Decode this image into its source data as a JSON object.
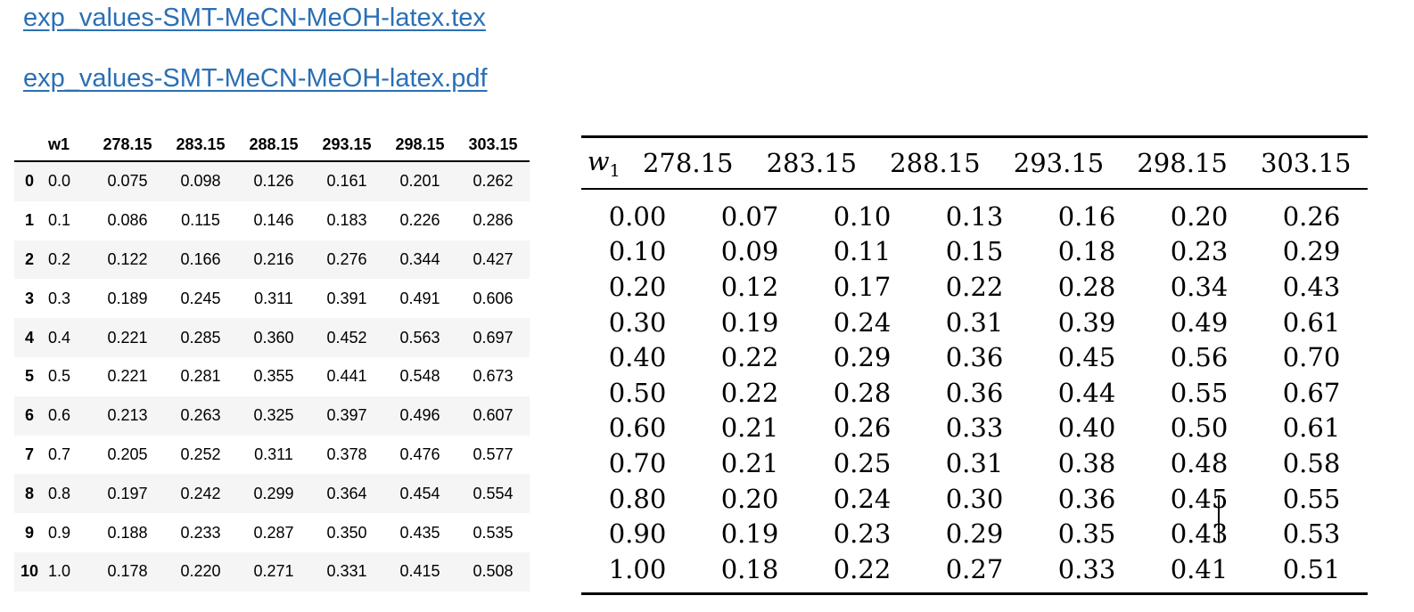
{
  "links": {
    "tex": "exp_values-SMT-MeCN-MeOH-latex.tex",
    "pdf": "exp_values-SMT-MeCN-MeOH-latex.pdf"
  },
  "dataframe": {
    "columns": [
      "w1",
      "278.15",
      "283.15",
      "288.15",
      "293.15",
      "298.15",
      "303.15"
    ],
    "rows": [
      {
        "index": "0",
        "cells": [
          "0.0",
          "0.075",
          "0.098",
          "0.126",
          "0.161",
          "0.201",
          "0.262"
        ]
      },
      {
        "index": "1",
        "cells": [
          "0.1",
          "0.086",
          "0.115",
          "0.146",
          "0.183",
          "0.226",
          "0.286"
        ]
      },
      {
        "index": "2",
        "cells": [
          "0.2",
          "0.122",
          "0.166",
          "0.216",
          "0.276",
          "0.344",
          "0.427"
        ]
      },
      {
        "index": "3",
        "cells": [
          "0.3",
          "0.189",
          "0.245",
          "0.311",
          "0.391",
          "0.491",
          "0.606"
        ]
      },
      {
        "index": "4",
        "cells": [
          "0.4",
          "0.221",
          "0.285",
          "0.360",
          "0.452",
          "0.563",
          "0.697"
        ]
      },
      {
        "index": "5",
        "cells": [
          "0.5",
          "0.221",
          "0.281",
          "0.355",
          "0.441",
          "0.548",
          "0.673"
        ]
      },
      {
        "index": "6",
        "cells": [
          "0.6",
          "0.213",
          "0.263",
          "0.325",
          "0.397",
          "0.496",
          "0.607"
        ]
      },
      {
        "index": "7",
        "cells": [
          "0.7",
          "0.205",
          "0.252",
          "0.311",
          "0.378",
          "0.476",
          "0.577"
        ]
      },
      {
        "index": "8",
        "cells": [
          "0.8",
          "0.197",
          "0.242",
          "0.299",
          "0.364",
          "0.454",
          "0.554"
        ]
      },
      {
        "index": "9",
        "cells": [
          "0.9",
          "0.188",
          "0.233",
          "0.287",
          "0.350",
          "0.435",
          "0.535"
        ]
      },
      {
        "index": "10",
        "cells": [
          "1.0",
          "0.178",
          "0.220",
          "0.271",
          "0.331",
          "0.415",
          "0.508"
        ]
      }
    ]
  },
  "latex_table": {
    "w1_symbol": "w",
    "w1_subscript": "1",
    "headers": [
      "278.15",
      "283.15",
      "288.15",
      "293.15",
      "298.15",
      "303.15"
    ],
    "rows": [
      [
        "0.00",
        "0.07",
        "0.10",
        "0.13",
        "0.16",
        "0.20",
        "0.26"
      ],
      [
        "0.10",
        "0.09",
        "0.11",
        "0.15",
        "0.18",
        "0.23",
        "0.29"
      ],
      [
        "0.20",
        "0.12",
        "0.17",
        "0.22",
        "0.28",
        "0.34",
        "0.43"
      ],
      [
        "0.30",
        "0.19",
        "0.24",
        "0.31",
        "0.39",
        "0.49",
        "0.61"
      ],
      [
        "0.40",
        "0.22",
        "0.29",
        "0.36",
        "0.45",
        "0.56",
        "0.70"
      ],
      [
        "0.50",
        "0.22",
        "0.28",
        "0.36",
        "0.44",
        "0.55",
        "0.67"
      ],
      [
        "0.60",
        "0.21",
        "0.26",
        "0.33",
        "0.40",
        "0.50",
        "0.61"
      ],
      [
        "0.70",
        "0.21",
        "0.25",
        "0.31",
        "0.38",
        "0.48",
        "0.58"
      ],
      [
        "0.80",
        "0.20",
        "0.24",
        "0.30",
        "0.36",
        "0.45",
        "0.55"
      ],
      [
        "0.90",
        "0.19",
        "0.23",
        "0.29",
        "0.35",
        "0.43",
        "0.53"
      ],
      [
        "1.00",
        "0.18",
        "0.22",
        "0.27",
        "0.33",
        "0.41",
        "0.51"
      ]
    ]
  }
}
